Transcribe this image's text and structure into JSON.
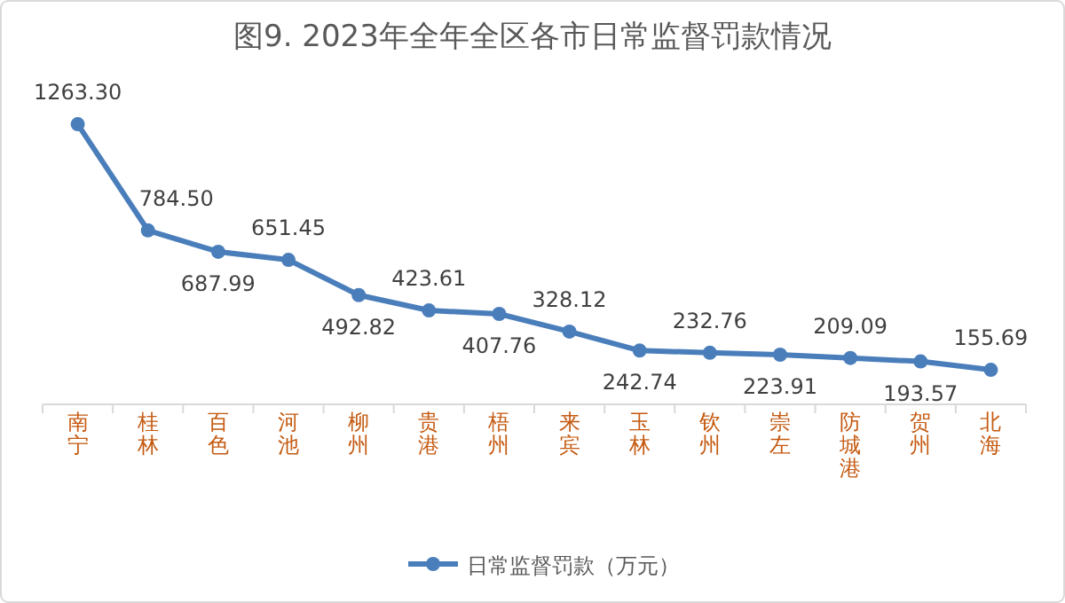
{
  "chart_data": {
    "type": "line",
    "title": "图9. 2023年全年全区各市日常监督罚款情况",
    "categories": [
      "南宁",
      "桂林",
      "百色",
      "河池",
      "柳州",
      "贵港",
      "梧州",
      "来宾",
      "玉林",
      "钦州",
      "崇左",
      "防城港",
      "贺州",
      "北海"
    ],
    "series": [
      {
        "name": "日常监督罚款（万元）",
        "color": "#4a7ebb",
        "values": [
          1263.3,
          784.5,
          687.99,
          651.45,
          492.82,
          423.61,
          407.76,
          328.12,
          242.74,
          232.76,
          223.91,
          209.09,
          193.57,
          155.69
        ],
        "value_labels": [
          "1263.30",
          "784.50",
          "687.99",
          "651.45",
          "492.82",
          "423.61",
          "407.76",
          "328.12",
          "242.74",
          "232.76",
          "223.91",
          "209.09",
          "193.57",
          "155.69"
        ]
      }
    ],
    "marker": "circle",
    "legend": "bottom",
    "grid": false
  }
}
